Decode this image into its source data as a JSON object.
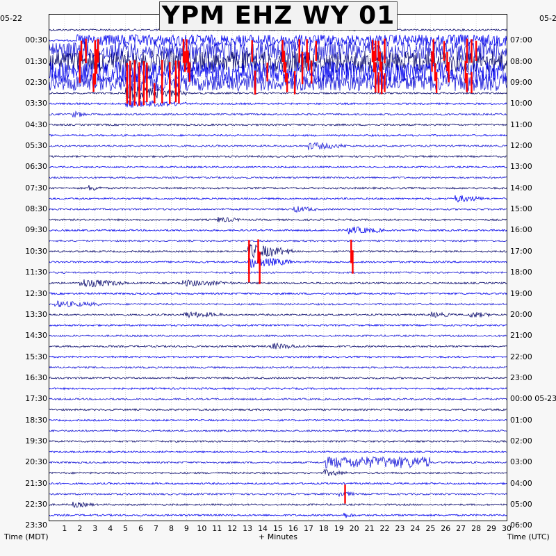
{
  "chart_data": {
    "type": "line",
    "title": "YPM EHZ WY 01",
    "date_left": "05-22",
    "date_right": "05-2",
    "xlabel_left": "Time (MDT)",
    "xlabel": "+ Minutes",
    "xlabel_right": "Time (UTC)",
    "x_ticks": [
      "1",
      "2",
      "3",
      "4",
      "5",
      "6",
      "7",
      "8",
      "9",
      "10",
      "11",
      "12",
      "13",
      "14",
      "15",
      "16",
      "17",
      "18",
      "19",
      "20",
      "21",
      "22",
      "23",
      "24",
      "25",
      "26",
      "27",
      "28",
      "29",
      "30"
    ],
    "xlim": [
      0,
      30
    ],
    "rows_per_hour": 2,
    "row_count": 48,
    "left_labels": [
      "00:30",
      "01:30",
      "02:30",
      "03:30",
      "04:30",
      "05:30",
      "06:30",
      "07:30",
      "08:30",
      "09:30",
      "10:30",
      "11:30",
      "12:30",
      "13:30",
      "14:30",
      "15:30",
      "16:30",
      "17:30",
      "18:30",
      "19:30",
      "20:30",
      "21:30",
      "22:30",
      "23:30"
    ],
    "right_labels": [
      "07:00",
      "08:00",
      "09:00",
      "10:00",
      "11:00",
      "12:00",
      "13:00",
      "14:00",
      "15:00",
      "16:00",
      "17:00",
      "18:00",
      "19:00",
      "20:00",
      "21:00",
      "22:00",
      "23:00",
      "00:00 05-23",
      "01:00",
      "02:00",
      "03:00",
      "04:00",
      "05:00",
      "06:00"
    ],
    "trace_colors": [
      "#0a0a6e",
      "#0000ee",
      "#1a1ad8"
    ],
    "clip_color": "#ff0000",
    "grid": true,
    "events": [
      {
        "row": 1,
        "start": 1.8,
        "end": 30,
        "amp": 0.9
      },
      {
        "row": 2,
        "start": 0,
        "end": 30,
        "amp": 1.6
      },
      {
        "row": 3,
        "start": 0,
        "end": 30,
        "amp": 1.8
      },
      {
        "row": 4,
        "start": 0,
        "end": 30,
        "amp": 1.8
      },
      {
        "row": 5,
        "start": 0,
        "end": 30,
        "amp": 1.4
      },
      {
        "row": 6,
        "start": 5,
        "end": 9,
        "amp": 1.3
      },
      {
        "row": 7,
        "start": 5,
        "end": 9,
        "amp": 0.6
      },
      {
        "row": 8,
        "start": 1.5,
        "end": 2.5,
        "amp": 0.5
      },
      {
        "row": 11,
        "start": 17,
        "end": 19.5,
        "amp": 0.6
      },
      {
        "row": 15,
        "start": 2.5,
        "end": 3.5,
        "amp": 0.5
      },
      {
        "row": 16,
        "start": 26.5,
        "end": 28.5,
        "amp": 0.6
      },
      {
        "row": 17,
        "start": 16,
        "end": 17.5,
        "amp": 0.5
      },
      {
        "row": 18,
        "start": 11,
        "end": 12.5,
        "amp": 0.4
      },
      {
        "row": 19,
        "start": 19.5,
        "end": 22,
        "amp": 0.6
      },
      {
        "row": 21,
        "start": 13,
        "end": 16,
        "amp": 1.3
      },
      {
        "row": 22,
        "start": 13,
        "end": 16,
        "amp": 1.0
      },
      {
        "row": 24,
        "start": 2,
        "end": 5,
        "amp": 0.7
      },
      {
        "row": 24,
        "start": 8.7,
        "end": 12,
        "amp": 0.5
      },
      {
        "row": 26,
        "start": 0.3,
        "end": 3.5,
        "amp": 0.5
      },
      {
        "row": 27,
        "start": 8.8,
        "end": 11.5,
        "amp": 0.5
      },
      {
        "row": 27,
        "start": 25,
        "end": 26.5,
        "amp": 0.4
      },
      {
        "row": 27,
        "start": 27.5,
        "end": 29,
        "amp": 0.5
      },
      {
        "row": 30,
        "start": 14.5,
        "end": 16.5,
        "amp": 0.5
      },
      {
        "row": 41,
        "start": 18,
        "end": 25,
        "amp": 0.9
      },
      {
        "row": 42,
        "start": 18,
        "end": 19.5,
        "amp": 0.5
      },
      {
        "row": 44,
        "start": 19,
        "end": 20,
        "amp": 0.5
      },
      {
        "row": 45,
        "start": 1.5,
        "end": 3,
        "amp": 0.4
      },
      {
        "row": 46,
        "start": 19.2,
        "end": 20,
        "amp": 0.5
      }
    ],
    "clipped_spikes": [
      {
        "row": 2,
        "x": [
          2.1,
          2.4,
          3.0,
          3.2,
          8.8,
          9.0,
          13.3,
          15.3,
          16.4,
          16.9,
          17.5,
          21.2,
          21.4,
          21.6,
          22.0,
          25.2,
          25.9,
          27.4,
          27.7,
          28.0
        ]
      },
      {
        "row": 3,
        "x": [
          2.0,
          3.1,
          8.9,
          9.1,
          15.4,
          16.6,
          17.0,
          21.3,
          21.7,
          25.1,
          26.1
        ]
      },
      {
        "row": 4,
        "x": [
          2.0,
          3.0,
          5.1,
          5.3,
          5.6,
          5.9,
          6.2,
          6.4,
          7.4,
          7.9,
          8.3,
          8.5,
          9.2,
          14.3,
          15.5,
          16.6,
          17.2,
          21.4,
          21.8,
          25.3,
          26.2,
          27.3
        ]
      },
      {
        "row": 5,
        "x": [
          2.9,
          5.1,
          5.3,
          5.6,
          5.9,
          6.2,
          6.4,
          7.4,
          7.9,
          8.3,
          8.5,
          13.5,
          15.6,
          16.1,
          21.4,
          21.6,
          21.8,
          22.0,
          25.4,
          27.4,
          27.7
        ]
      },
      {
        "row": 6,
        "x": [
          5.1,
          5.3,
          5.6,
          5.9,
          6.2,
          6.4,
          6.9,
          7.4,
          7.9,
          8.3,
          8.5
        ]
      },
      {
        "row": 21,
        "x": [
          13.1,
          13.7,
          19.8
        ]
      },
      {
        "row": 22,
        "x": [
          13.1,
          13.8,
          19.9
        ]
      },
      {
        "row": 23,
        "x": [
          13.1,
          13.8
        ]
      },
      {
        "row": 44,
        "x": [
          19.4
        ]
      }
    ]
  }
}
